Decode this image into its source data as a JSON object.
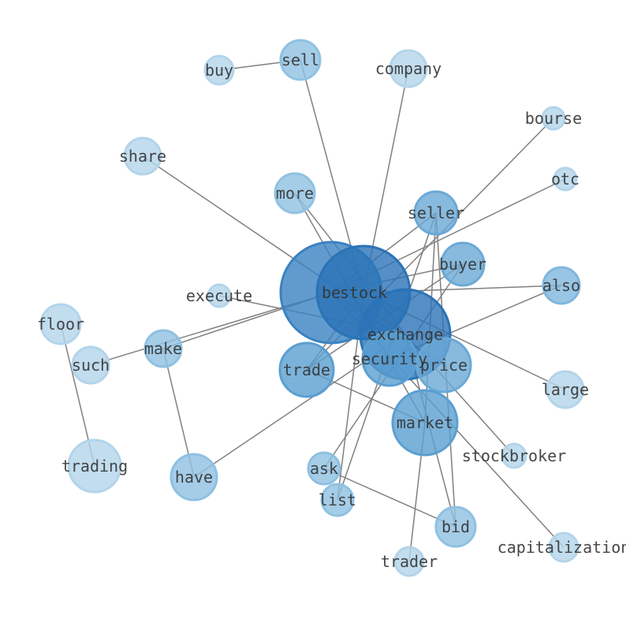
{
  "nodes": [
    {
      "id": "buy",
      "color": "#b3d4ea"
    },
    {
      "id": "sell",
      "color": "#8fc1e2"
    },
    {
      "id": "company",
      "color": "#b3d4ea"
    },
    {
      "id": "bourse",
      "color": "#b3d4ea"
    },
    {
      "id": "share",
      "color": "#b3d4ea"
    },
    {
      "id": "more",
      "color": "#8fc1e2"
    },
    {
      "id": "seller",
      "color": "#6aa9d6"
    },
    {
      "id": "otc",
      "color": "#b3d4ea"
    },
    {
      "id": "buyer",
      "color": "#6aa9d6"
    },
    {
      "id": "also",
      "color": "#7fb6dd"
    },
    {
      "id": "be",
      "color": "#3a82c2"
    },
    {
      "id": "stock",
      "color": "#2a73b6"
    },
    {
      "id": "execute",
      "color": "#b3d4ea"
    },
    {
      "id": "exchange",
      "color": "#2a73b6"
    },
    {
      "id": "floor",
      "color": "#b3d4ea"
    },
    {
      "id": "make",
      "color": "#8fc1e2"
    },
    {
      "id": "such",
      "color": "#b3d4ea"
    },
    {
      "id": "security",
      "color": "#5a9fd1"
    },
    {
      "id": "price",
      "color": "#6aa9d6"
    },
    {
      "id": "trade",
      "color": "#5a9fd1"
    },
    {
      "id": "large",
      "color": "#b3d4ea"
    },
    {
      "id": "market",
      "color": "#5a9fd1"
    },
    {
      "id": "stockbroker",
      "color": "#b3d4ea"
    },
    {
      "id": "trading",
      "color": "#b3d4ea"
    },
    {
      "id": "have",
      "color": "#8fc1e2"
    },
    {
      "id": "ask",
      "color": "#8fc1e2"
    },
    {
      "id": "list",
      "color": "#8fc1e2"
    },
    {
      "id": "bid",
      "color": "#8fc1e2"
    },
    {
      "id": "capitalization",
      "color": "#b3d4ea"
    },
    {
      "id": "trader",
      "color": "#b3d4ea"
    }
  ],
  "edges": [
    [
      "buy",
      "sell"
    ],
    [
      "sell",
      "stock"
    ],
    [
      "company",
      "stock"
    ],
    [
      "bourse",
      "trade"
    ],
    [
      "otc",
      "be"
    ],
    [
      "share",
      "exchange"
    ],
    [
      "more",
      "market"
    ],
    [
      "more",
      "exchange"
    ],
    [
      "seller",
      "be"
    ],
    [
      "seller",
      "market"
    ],
    [
      "seller",
      "bid"
    ],
    [
      "seller",
      "list"
    ],
    [
      "buyer",
      "be"
    ],
    [
      "buyer",
      "ask"
    ],
    [
      "buyer",
      "trade"
    ],
    [
      "also",
      "stock"
    ],
    [
      "also",
      "security"
    ],
    [
      "execute",
      "exchange"
    ],
    [
      "floor",
      "trading"
    ],
    [
      "such",
      "be"
    ],
    [
      "make",
      "be"
    ],
    [
      "make",
      "have"
    ],
    [
      "have",
      "exchange"
    ],
    [
      "trade",
      "market"
    ],
    [
      "trade",
      "stock"
    ],
    [
      "large",
      "stock"
    ],
    [
      "stockbroker",
      "exchange"
    ],
    [
      "capitalization",
      "be"
    ],
    [
      "ask",
      "bid"
    ],
    [
      "list",
      "stock"
    ],
    [
      "trader",
      "market"
    ],
    [
      "bid",
      "exchange"
    ],
    [
      "price",
      "be"
    ]
  ],
  "edge_color": "#808080"
}
